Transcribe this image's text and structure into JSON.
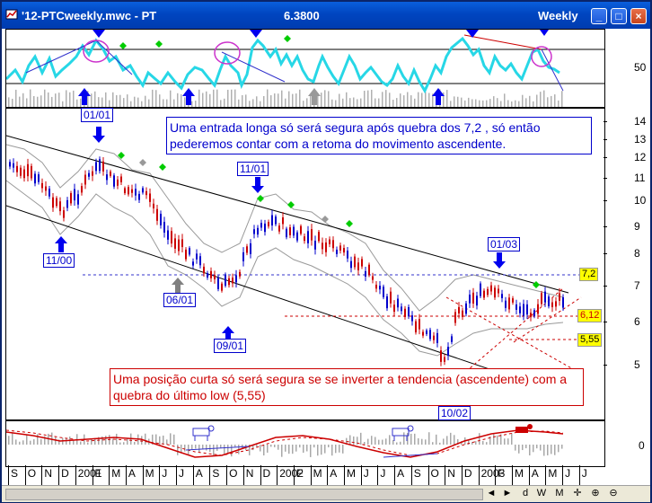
{
  "window": {
    "title": "'12-PTCweekly.mwc - PT",
    "price": "6.3800",
    "period": "Weekly",
    "min_symbol": "_",
    "max_symbol": "□",
    "close_symbol": "×"
  },
  "rsi_panel": {
    "axis_label": "50"
  },
  "price_panel": {
    "y_ticks": [
      "14",
      "13",
      "12",
      "11",
      "10",
      "9",
      "8",
      "7",
      "6",
      "5"
    ],
    "date_labels": [
      "01/01",
      "11/00",
      "06/01",
      "09/01",
      "11/01",
      "01/03",
      "10/02"
    ],
    "price_levels": [
      "7,2",
      "6,12",
      "5,55"
    ],
    "note_long": "Uma entrada longa só será segura após quebra dos 7,2 , só então pederemos contar com a retoma do movimento ascendente.",
    "note_short": "Uma posição curta só será segura se se inverter a tendencia (ascendente) com a quebra do último low (5,55)"
  },
  "macd_panel": {
    "axis_label": "0"
  },
  "x_axis": [
    "S",
    "O",
    "N",
    "D",
    "2001",
    "F",
    "M",
    "A",
    "M",
    "J",
    "J",
    "A",
    "S",
    "O",
    "N",
    "D",
    "2002",
    "F",
    "M",
    "A",
    "M",
    "J",
    "J",
    "A",
    "S",
    "O",
    "N",
    "D",
    "2003",
    "F",
    "M",
    "A",
    "M",
    "J",
    "J"
  ],
  "statusbar": {
    "icons": [
      "scroll-left",
      "scroll-right",
      "daily",
      "weekly",
      "monthly",
      "crosshair",
      "zoom-in",
      "zoom-out"
    ],
    "labels": [
      "◄",
      "►",
      "d",
      "W",
      "M",
      "✛",
      "⊕",
      "⊖"
    ]
  },
  "colors": {
    "rsi_line": "#27d7e6",
    "candle_up": "#0000cc",
    "candle_down": "#cc0000",
    "channel": "#000000",
    "bollinger": "#9a9a9a",
    "arrow_blue": "#0000ee",
    "arrow_gray": "#808080",
    "diamond_green": "#00cc00",
    "note_long_color": "#0000cc",
    "note_short_color": "#cc0000"
  }
}
